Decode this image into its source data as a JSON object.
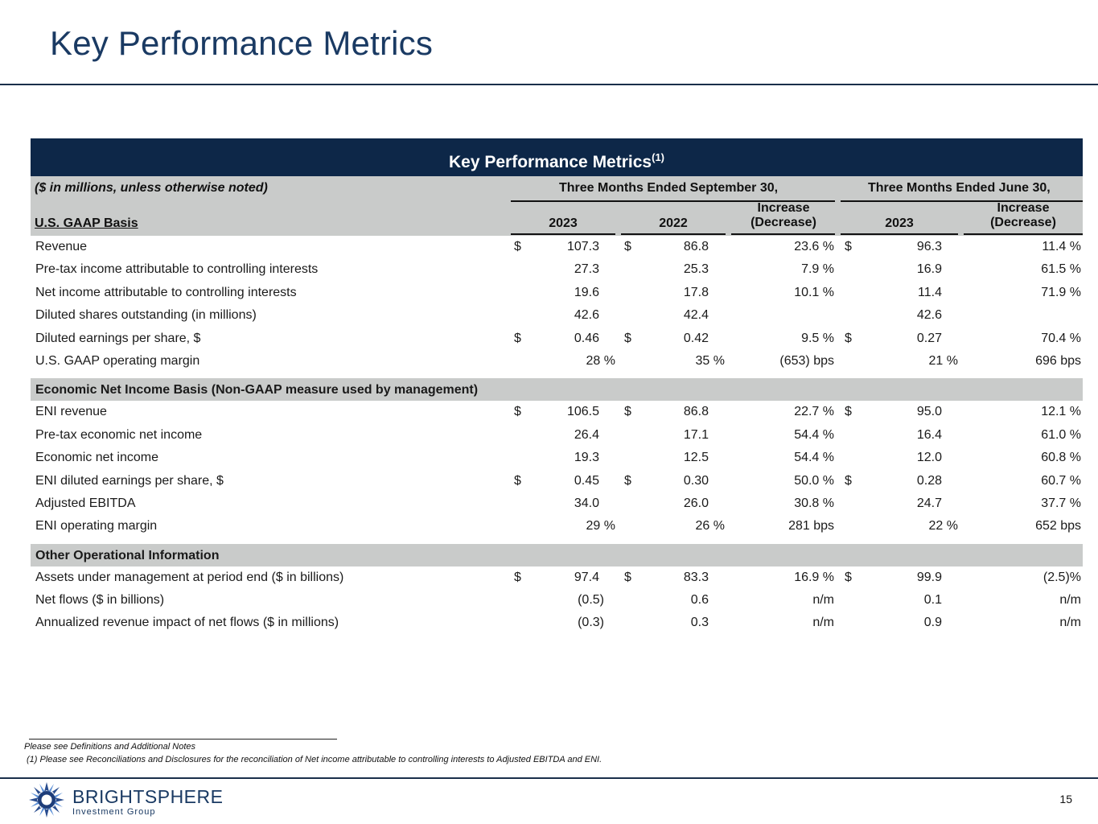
{
  "page": {
    "title": "Key Performance Metrics",
    "number": "15"
  },
  "table": {
    "title": "Key Performance Metrics",
    "title_sup": "(1)",
    "units_note": "($ in millions, unless otherwise noted)",
    "group1": "Three Months Ended September 30,",
    "group2": "Three Months Ended June 30,",
    "section_gaap": "U.S. GAAP Basis",
    "col_2023": "2023",
    "col_2022": "2022",
    "col_inc_line1": "Increase",
    "col_inc_line2": "(Decrease)",
    "col_jun_2023": "2023",
    "col_inc2_line1": "Increase",
    "col_inc2_line2": "(Decrease)",
    "gaap_rows": [
      {
        "label": "Revenue",
        "d1": "$",
        "v1": "107.3",
        "d2": "$",
        "v2": "86.8",
        "inc": "23.6 %",
        "d3": "$",
        "v3": "96.3",
        "inc2": "11.4 %"
      },
      {
        "label": "Pre-tax income attributable to controlling interests",
        "d1": "",
        "v1": "27.3",
        "d2": "",
        "v2": "25.3",
        "inc": "7.9 %",
        "d3": "",
        "v3": "16.9",
        "inc2": "61.5 %"
      },
      {
        "label": "Net income attributable to controlling interests",
        "d1": "",
        "v1": "19.6",
        "d2": "",
        "v2": "17.8",
        "inc": "10.1 %",
        "d3": "",
        "v3": "11.4",
        "inc2": "71.9 %"
      },
      {
        "label": "Diluted shares outstanding (in millions)",
        "d1": "",
        "v1": "42.6",
        "d2": "",
        "v2": "42.4",
        "inc": "",
        "d3": "",
        "v3": "42.6",
        "inc2": ""
      },
      {
        "label": "Diluted earnings per share, $",
        "d1": "$",
        "v1": "0.46",
        "d2": "$",
        "v2": "0.42",
        "inc": "9.5 %",
        "d3": "$",
        "v3": "0.27",
        "inc2": "70.4 %"
      },
      {
        "label": "U.S. GAAP operating margin",
        "d1": "",
        "v1": "28 %",
        "d2": "",
        "v2": "35 %",
        "inc": "(653) bps",
        "d3": "",
        "v3": "21 %",
        "inc2": "696 bps"
      }
    ],
    "section_eni": "Economic Net Income Basis (Non-GAAP measure used by management)",
    "eni_rows": [
      {
        "label": "ENI revenue",
        "d1": "$",
        "v1": "106.5",
        "d2": "$",
        "v2": "86.8",
        "inc": "22.7 %",
        "d3": "$",
        "v3": "95.0",
        "inc2": "12.1 %"
      },
      {
        "label": "Pre-tax economic net income",
        "d1": "",
        "v1": "26.4",
        "d2": "",
        "v2": "17.1",
        "inc": "54.4 %",
        "d3": "",
        "v3": "16.4",
        "inc2": "61.0 %"
      },
      {
        "label": "Economic net income",
        "d1": "",
        "v1": "19.3",
        "d2": "",
        "v2": "12.5",
        "inc": "54.4 %",
        "d3": "",
        "v3": "12.0",
        "inc2": "60.8 %"
      },
      {
        "label": "ENI diluted earnings per share, $",
        "d1": "$",
        "v1": "0.45",
        "d2": "$",
        "v2": "0.30",
        "inc": "50.0 %",
        "d3": "$",
        "v3": "0.28",
        "inc2": "60.7 %"
      },
      {
        "label": "Adjusted EBITDA",
        "d1": "",
        "v1": "34.0",
        "d2": "",
        "v2": "26.0",
        "inc": "30.8 %",
        "d3": "",
        "v3": "24.7",
        "inc2": "37.7 %"
      },
      {
        "label": "ENI operating margin",
        "d1": "",
        "v1": "29 %",
        "d2": "",
        "v2": "26 %",
        "inc": "281 bps",
        "d3": "",
        "v3": "22 %",
        "inc2": "652 bps"
      }
    ],
    "section_ops": "Other Operational Information",
    "ops_rows": [
      {
        "label": "Assets under management at period end ($ in billions)",
        "d1": "$",
        "v1": "97.4",
        "d2": "$",
        "v2": "83.3",
        "inc": "16.9 %",
        "d3": "$",
        "v3": "99.9",
        "inc2": "(2.5)%"
      },
      {
        "label": "Net flows ($ in billions)",
        "d1": "",
        "v1": "(0.5)",
        "d2": "",
        "v2": "0.6",
        "inc": "n/m",
        "d3": "",
        "v3": "0.1",
        "inc2": "n/m"
      },
      {
        "label": "Annualized revenue impact of net flows ($ in millions)",
        "d1": "",
        "v1": "(0.3)",
        "d2": "",
        "v2": "0.3",
        "inc": "n/m",
        "d3": "",
        "v3": "0.9",
        "inc2": "n/m"
      }
    ]
  },
  "footnotes": {
    "line1": "Please see Definitions and Additional Notes",
    "line2": "(1)   Please see Reconciliations and Disclosures for the reconciliation of Net income attributable to controlling interests to Adjusted EBITDA and ENI."
  },
  "brand": {
    "name": "BRIGHTSPHERE",
    "sub": "Investment Group"
  },
  "colors": {
    "navy": "#0d2748",
    "title_blue": "#1a3a63",
    "band_gray": "#c9cbca"
  }
}
